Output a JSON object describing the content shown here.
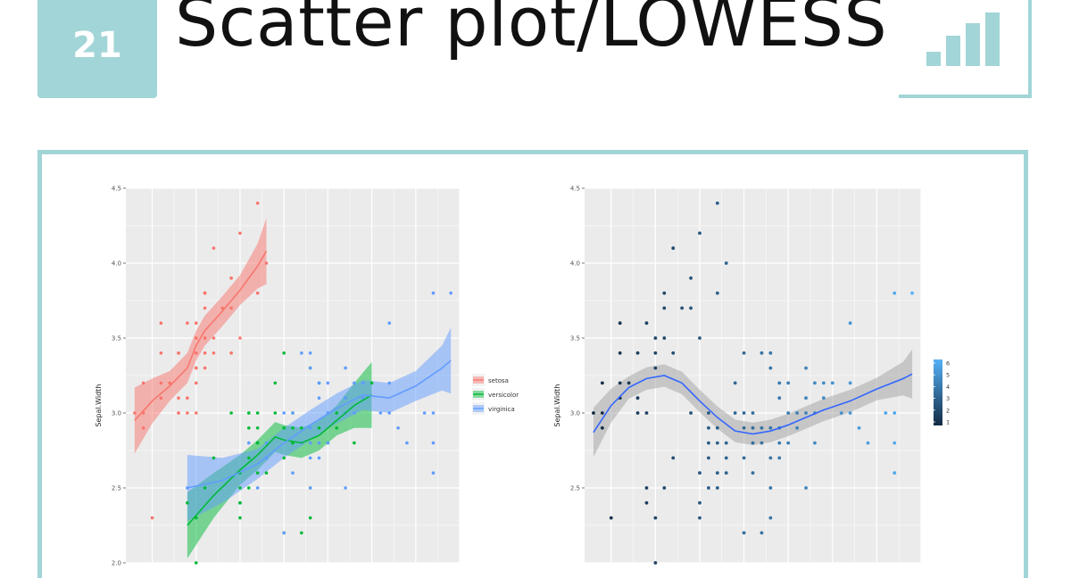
{
  "header": {
    "number": "21",
    "title": "Scatter plot/LOWESS",
    "accent_color": "#a2d5d7"
  },
  "chart_data": [
    {
      "type": "scatter",
      "title": "",
      "xlabel": "",
      "ylabel": "Sepal.Width",
      "xlim": [
        4.2,
        8.0
      ],
      "ylim": [
        2.0,
        4.5
      ],
      "y_ticks": [
        "2.0",
        "2.5",
        "3.0",
        "3.5",
        "4.0",
        "4.5"
      ],
      "grid": true,
      "smoother": "loess",
      "legend": {
        "placement": "right",
        "title": ""
      },
      "series": [
        {
          "name": "setosa",
          "color": "#f8766d",
          "points": [
            [
              4.3,
              3.0
            ],
            [
              4.4,
              2.9
            ],
            [
              4.4,
              3.0
            ],
            [
              4.4,
              3.2
            ],
            [
              4.5,
              2.3
            ],
            [
              4.6,
              3.1
            ],
            [
              4.6,
              3.4
            ],
            [
              4.6,
              3.6
            ],
            [
              4.6,
              3.2
            ],
            [
              4.7,
              3.2
            ],
            [
              4.7,
              3.2
            ],
            [
              4.8,
              3.4
            ],
            [
              4.8,
              3.0
            ],
            [
              4.8,
              3.4
            ],
            [
              4.8,
              3.1
            ],
            [
              4.8,
              3.0
            ],
            [
              4.9,
              3.0
            ],
            [
              4.9,
              3.1
            ],
            [
              4.9,
              3.6
            ],
            [
              5.0,
              3.6
            ],
            [
              5.0,
              3.4
            ],
            [
              5.0,
              3.0
            ],
            [
              5.0,
              3.3
            ],
            [
              5.0,
              3.2
            ],
            [
              5.0,
              3.5
            ],
            [
              5.0,
              3.4
            ],
            [
              5.0,
              3.5
            ],
            [
              5.0,
              3.3
            ],
            [
              5.1,
              3.5
            ],
            [
              5.1,
              3.5
            ],
            [
              5.1,
              3.8
            ],
            [
              5.1,
              3.7
            ],
            [
              5.1,
              3.3
            ],
            [
              5.1,
              3.4
            ],
            [
              5.1,
              3.8
            ],
            [
              5.1,
              3.8
            ],
            [
              5.2,
              3.5
            ],
            [
              5.2,
              3.4
            ],
            [
              5.2,
              4.1
            ],
            [
              5.3,
              3.7
            ],
            [
              5.4,
              3.9
            ],
            [
              5.4,
              3.7
            ],
            [
              5.4,
              3.9
            ],
            [
              5.4,
              3.4
            ],
            [
              5.4,
              3.4
            ],
            [
              5.5,
              4.2
            ],
            [
              5.5,
              3.5
            ],
            [
              5.7,
              4.4
            ],
            [
              5.7,
              3.8
            ],
            [
              5.8,
              4.0
            ]
          ],
          "smooth": [
            [
              4.3,
              2.95
            ],
            [
              4.5,
              3.08
            ],
            [
              4.7,
              3.18
            ],
            [
              4.9,
              3.3
            ],
            [
              5.0,
              3.45
            ],
            [
              5.1,
              3.55
            ],
            [
              5.3,
              3.68
            ],
            [
              5.5,
              3.82
            ],
            [
              5.7,
              3.98
            ],
            [
              5.8,
              4.08
            ]
          ]
        },
        {
          "name": "versicolor",
          "color": "#00ba38",
          "points": [
            [
              4.9,
              2.4
            ],
            [
              5.0,
              2.0
            ],
            [
              5.0,
              2.3
            ],
            [
              5.1,
              2.5
            ],
            [
              5.2,
              2.7
            ],
            [
              5.4,
              3.0
            ],
            [
              5.5,
              2.3
            ],
            [
              5.5,
              2.4
            ],
            [
              5.5,
              2.4
            ],
            [
              5.5,
              2.5
            ],
            [
              5.5,
              2.6
            ],
            [
              5.6,
              2.9
            ],
            [
              5.6,
              3.0
            ],
            [
              5.6,
              2.5
            ],
            [
              5.6,
              2.7
            ],
            [
              5.6,
              3.0
            ],
            [
              5.7,
              2.8
            ],
            [
              5.7,
              2.6
            ],
            [
              5.7,
              3.0
            ],
            [
              5.7,
              2.9
            ],
            [
              5.7,
              2.8
            ],
            [
              5.8,
              2.7
            ],
            [
              5.8,
              2.7
            ],
            [
              5.8,
              2.6
            ],
            [
              5.9,
              3.0
            ],
            [
              5.9,
              3.2
            ],
            [
              6.0,
              2.2
            ],
            [
              6.0,
              2.9
            ],
            [
              6.0,
              2.7
            ],
            [
              6.0,
              3.4
            ],
            [
              6.1,
              2.9
            ],
            [
              6.1,
              2.8
            ],
            [
              6.1,
              2.8
            ],
            [
              6.1,
              3.0
            ],
            [
              6.2,
              2.2
            ],
            [
              6.2,
              2.9
            ],
            [
              6.3,
              3.3
            ],
            [
              6.3,
              2.5
            ],
            [
              6.3,
              2.3
            ],
            [
              6.4,
              3.2
            ],
            [
              6.4,
              2.9
            ],
            [
              6.5,
              2.8
            ],
            [
              6.6,
              2.9
            ],
            [
              6.6,
              3.0
            ],
            [
              6.7,
              3.1
            ],
            [
              6.7,
              3.0
            ],
            [
              6.8,
              2.8
            ],
            [
              6.9,
              3.1
            ],
            [
              7.0,
              3.2
            ]
          ],
          "smooth": [
            [
              4.9,
              2.25
            ],
            [
              5.2,
              2.45
            ],
            [
              5.5,
              2.62
            ],
            [
              5.7,
              2.72
            ],
            [
              5.9,
              2.84
            ],
            [
              6.0,
              2.82
            ],
            [
              6.2,
              2.8
            ],
            [
              6.4,
              2.85
            ],
            [
              6.6,
              2.95
            ],
            [
              6.8,
              3.05
            ],
            [
              7.0,
              3.12
            ]
          ]
        },
        {
          "name": "virginica",
          "color": "#619cff",
          "points": [
            [
              4.9,
              2.5
            ],
            [
              5.6,
              2.8
            ],
            [
              5.7,
              2.5
            ],
            [
              5.8,
              2.7
            ],
            [
              5.8,
              2.8
            ],
            [
              5.8,
              2.7
            ],
            [
              6.0,
              3.0
            ],
            [
              6.0,
              2.2
            ],
            [
              6.1,
              3.0
            ],
            [
              6.1,
              2.6
            ],
            [
              6.2,
              2.8
            ],
            [
              6.2,
              3.4
            ],
            [
              6.3,
              3.3
            ],
            [
              6.3,
              2.9
            ],
            [
              6.3,
              2.7
            ],
            [
              6.3,
              2.8
            ],
            [
              6.3,
              2.5
            ],
            [
              6.3,
              3.4
            ],
            [
              6.4,
              3.2
            ],
            [
              6.4,
              2.7
            ],
            [
              6.4,
              3.1
            ],
            [
              6.4,
              2.8
            ],
            [
              6.5,
              3.0
            ],
            [
              6.5,
              3.2
            ],
            [
              6.5,
              3.0
            ],
            [
              6.5,
              2.8
            ],
            [
              6.7,
              2.5
            ],
            [
              6.7,
              3.3
            ],
            [
              6.7,
              3.1
            ],
            [
              6.7,
              3.0
            ],
            [
              6.8,
              3.2
            ],
            [
              6.8,
              3.0
            ],
            [
              6.9,
              3.2
            ],
            [
              6.9,
              3.1
            ],
            [
              7.1,
              3.0
            ],
            [
              7.2,
              3.6
            ],
            [
              7.2,
              3.2
            ],
            [
              7.2,
              3.0
            ],
            [
              7.3,
              2.9
            ],
            [
              7.4,
              2.8
            ],
            [
              7.6,
              3.0
            ],
            [
              7.7,
              3.8
            ],
            [
              7.7,
              2.6
            ],
            [
              7.7,
              2.8
            ],
            [
              7.7,
              3.0
            ],
            [
              7.9,
              3.8
            ]
          ],
          "smooth": [
            [
              4.9,
              2.5
            ],
            [
              5.3,
              2.55
            ],
            [
              5.7,
              2.66
            ],
            [
              6.0,
              2.8
            ],
            [
              6.3,
              2.92
            ],
            [
              6.6,
              3.03
            ],
            [
              6.9,
              3.12
            ],
            [
              7.2,
              3.1
            ],
            [
              7.5,
              3.18
            ],
            [
              7.8,
              3.3
            ],
            [
              7.9,
              3.35
            ]
          ]
        }
      ]
    },
    {
      "type": "scatter",
      "title": "",
      "xlabel": "",
      "ylabel": "Sepal.Width",
      "xlim": [
        4.2,
        8.0
      ],
      "ylim": [
        2.0,
        4.5
      ],
      "y_ticks": [
        "2.5",
        "3.0",
        "3.5",
        "4.0",
        "4.5"
      ],
      "grid": true,
      "smoother": "loess",
      "colorbar": {
        "labels": [
          "1",
          "2",
          "3",
          "4",
          "5",
          "6"
        ],
        "low_color": "#132b43",
        "high_color": "#56b1f7"
      },
      "points": [
        [
          4.3,
          3.0
        ],
        [
          4.4,
          2.9
        ],
        [
          4.4,
          3.0
        ],
        [
          4.4,
          3.2
        ],
        [
          4.5,
          2.3
        ],
        [
          4.6,
          3.1
        ],
        [
          4.6,
          3.4
        ],
        [
          4.6,
          3.6
        ],
        [
          4.6,
          3.2
        ],
        [
          4.7,
          3.2
        ],
        [
          4.8,
          3.4
        ],
        [
          4.8,
          3.0
        ],
        [
          4.8,
          3.1
        ],
        [
          4.9,
          3.0
        ],
        [
          4.9,
          3.6
        ],
        [
          4.9,
          2.4
        ],
        [
          4.9,
          2.5
        ],
        [
          5.0,
          3.4
        ],
        [
          5.0,
          3.3
        ],
        [
          5.0,
          3.5
        ],
        [
          5.0,
          2.0
        ],
        [
          5.0,
          2.3
        ],
        [
          5.1,
          3.5
        ],
        [
          5.1,
          3.8
        ],
        [
          5.1,
          3.7
        ],
        [
          5.1,
          2.5
        ],
        [
          5.2,
          3.4
        ],
        [
          5.2,
          4.1
        ],
        [
          5.2,
          2.7
        ],
        [
          5.3,
          3.7
        ],
        [
          5.4,
          3.9
        ],
        [
          5.4,
          3.7
        ],
        [
          5.4,
          3.0
        ],
        [
          5.5,
          4.2
        ],
        [
          5.5,
          3.5
        ],
        [
          5.5,
          2.3
        ],
        [
          5.5,
          2.4
        ],
        [
          5.5,
          2.6
        ],
        [
          5.6,
          3.0
        ],
        [
          5.6,
          2.9
        ],
        [
          5.6,
          2.5
        ],
        [
          5.6,
          2.7
        ],
        [
          5.6,
          2.8
        ],
        [
          5.7,
          4.4
        ],
        [
          5.7,
          3.8
        ],
        [
          5.7,
          2.8
        ],
        [
          5.7,
          2.6
        ],
        [
          5.7,
          2.9
        ],
        [
          5.7,
          2.5
        ],
        [
          5.8,
          4.0
        ],
        [
          5.8,
          2.7
        ],
        [
          5.8,
          2.6
        ],
        [
          5.8,
          2.8
        ],
        [
          5.9,
          3.0
        ],
        [
          5.9,
          3.2
        ],
        [
          6.0,
          2.2
        ],
        [
          6.0,
          2.9
        ],
        [
          6.0,
          2.7
        ],
        [
          6.0,
          3.4
        ],
        [
          6.0,
          3.0
        ],
        [
          6.1,
          2.9
        ],
        [
          6.1,
          2.8
        ],
        [
          6.1,
          3.0
        ],
        [
          6.1,
          2.6
        ],
        [
          6.2,
          2.2
        ],
        [
          6.2,
          2.9
        ],
        [
          6.2,
          2.8
        ],
        [
          6.2,
          3.4
        ],
        [
          6.3,
          3.3
        ],
        [
          6.3,
          2.5
        ],
        [
          6.3,
          2.3
        ],
        [
          6.3,
          2.9
        ],
        [
          6.3,
          2.7
        ],
        [
          6.3,
          3.4
        ],
        [
          6.4,
          3.2
        ],
        [
          6.4,
          2.9
        ],
        [
          6.4,
          2.7
        ],
        [
          6.4,
          3.1
        ],
        [
          6.4,
          2.8
        ],
        [
          6.5,
          2.8
        ],
        [
          6.5,
          3.0
        ],
        [
          6.5,
          3.2
        ],
        [
          6.6,
          2.9
        ],
        [
          6.6,
          3.0
        ],
        [
          6.7,
          3.1
        ],
        [
          6.7,
          3.0
        ],
        [
          6.7,
          2.5
        ],
        [
          6.7,
          3.3
        ],
        [
          6.8,
          2.8
        ],
        [
          6.8,
          3.2
        ],
        [
          6.8,
          3.0
        ],
        [
          6.9,
          3.1
        ],
        [
          6.9,
          3.2
        ],
        [
          7.0,
          3.2
        ],
        [
          7.1,
          3.0
        ],
        [
          7.2,
          3.6
        ],
        [
          7.2,
          3.2
        ],
        [
          7.2,
          3.0
        ],
        [
          7.3,
          2.9
        ],
        [
          7.4,
          2.8
        ],
        [
          7.6,
          3.0
        ],
        [
          7.7,
          3.8
        ],
        [
          7.7,
          2.6
        ],
        [
          7.7,
          2.8
        ],
        [
          7.7,
          3.0
        ],
        [
          7.9,
          3.8
        ]
      ],
      "smooth": [
        [
          4.3,
          2.87
        ],
        [
          4.5,
          3.05
        ],
        [
          4.7,
          3.17
        ],
        [
          4.9,
          3.23
        ],
        [
          5.1,
          3.25
        ],
        [
          5.3,
          3.2
        ],
        [
          5.5,
          3.08
        ],
        [
          5.7,
          2.97
        ],
        [
          5.9,
          2.88
        ],
        [
          6.1,
          2.86
        ],
        [
          6.3,
          2.88
        ],
        [
          6.5,
          2.92
        ],
        [
          6.7,
          2.97
        ],
        [
          6.9,
          3.02
        ],
        [
          7.2,
          3.08
        ],
        [
          7.5,
          3.16
        ],
        [
          7.8,
          3.23
        ],
        [
          7.9,
          3.26
        ]
      ]
    }
  ]
}
